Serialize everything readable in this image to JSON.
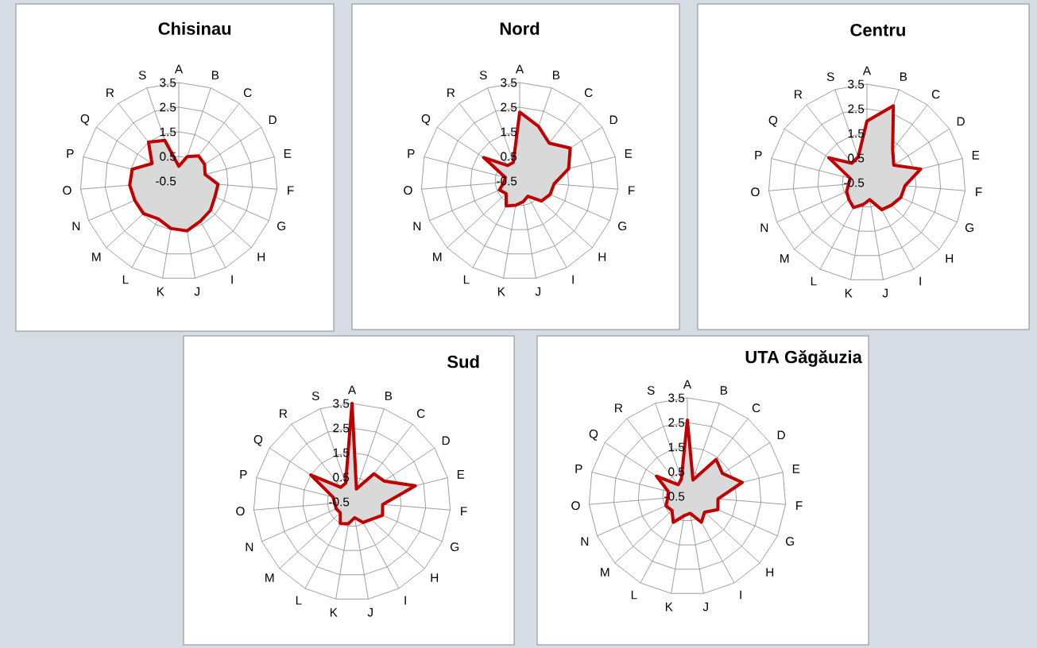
{
  "chart_data": [
    {
      "type": "radar",
      "title": "Chisinau",
      "categories": [
        "A",
        "B",
        "C",
        "D",
        "E",
        "F",
        "G",
        "H",
        "I",
        "J",
        "K",
        "L",
        "M",
        "N",
        "O",
        "P",
        "Q",
        "R",
        "S"
      ],
      "ylim": [
        -0.5,
        3.5
      ],
      "yticks": [
        -0.5,
        0.5,
        1.5,
        2.5,
        3.5
      ],
      "grid": true,
      "series": [
        {
          "color": "#c00000",
          "values": [
            0.1,
            0.55,
            0.8,
            0.75,
            0.6,
            1.1,
            1.1,
            1.25,
            1.35,
            1.55,
            1.45,
            1.25,
            1.45,
            1.45,
            1.5,
            1.45,
            0.8,
            1.5,
            1.25
          ]
        }
      ]
    },
    {
      "type": "radar",
      "title": "Nord",
      "categories": [
        "A",
        "B",
        "C",
        "D",
        "E",
        "F",
        "G",
        "H",
        "I",
        "J",
        "K",
        "L",
        "M",
        "N",
        "O",
        "P",
        "Q",
        "R",
        "S"
      ],
      "ylim": [
        -0.5,
        3.5
      ],
      "yticks": [
        -0.5,
        0.5,
        1.5,
        2.5,
        3.5
      ],
      "grid": true,
      "series": [
        {
          "color": "#c00000",
          "values": [
            2.3,
            1.85,
            1.45,
            1.95,
            1.55,
            0.9,
            0.85,
            0.7,
            0.2,
            0.35,
            0.5,
            0.65,
            0.25,
            0.4,
            0.15,
            0.1,
            1.25,
            0.3,
            0.3
          ]
        }
      ]
    },
    {
      "type": "radar",
      "title": "Centru",
      "categories": [
        "A",
        "B",
        "C",
        "D",
        "E",
        "F",
        "G",
        "H",
        "I",
        "J",
        "K",
        "L",
        "M",
        "N",
        "O",
        "P",
        "Q",
        "R",
        "S"
      ],
      "ylim": [
        -0.5,
        3.5
      ],
      "yticks": [
        -0.5,
        0.5,
        1.5,
        2.5,
        3.5
      ],
      "grid": true,
      "series": [
        {
          "color": "#c00000",
          "values": [
            2.0,
            2.8,
            1.2,
            0.8,
            1.75,
            1.05,
            1.0,
            0.85,
            0.75,
            0.2,
            0.4,
            0.65,
            0.5,
            0.4,
            0.25,
            0.2,
            1.35,
            0.5,
            0.6
          ]
        }
      ]
    },
    {
      "type": "radar",
      "title": "Sud",
      "categories": [
        "A",
        "B",
        "C",
        "D",
        "E",
        "F",
        "G",
        "H",
        "I",
        "J",
        "K",
        "L",
        "M",
        "N",
        "O",
        "P",
        "Q",
        "R",
        "S"
      ],
      "ylim": [
        -0.5,
        3.5
      ],
      "yticks": [
        -0.5,
        0.5,
        1.5,
        2.5,
        3.5
      ],
      "grid": true,
      "series": [
        {
          "color": "#c00000",
          "values": [
            3.5,
            0.05,
            0.95,
            1.05,
            2.15,
            0.75,
            0.85,
            0.55,
            0.45,
            0.15,
            0.4,
            0.5,
            0.15,
            0.2,
            0.2,
            0.3,
            1.5,
            0.25,
            0.3
          ]
        }
      ]
    },
    {
      "type": "radar",
      "title": "UTA Găgăuzia",
      "categories": [
        "A",
        "B",
        "C",
        "D",
        "E",
        "F",
        "G",
        "H",
        "I",
        "J",
        "K",
        "L",
        "M",
        "N",
        "O",
        "P",
        "Q",
        "R",
        "S"
      ],
      "ylim": [
        -0.5,
        3.5
      ],
      "yticks": [
        -0.5,
        0.5,
        1.5,
        2.5,
        3.5
      ],
      "grid": true,
      "series": [
        {
          "color": "#c00000",
          "values": [
            2.6,
            0.2,
            1.4,
            1.2,
            1.8,
            0.75,
            0.85,
            0.45,
            0.7,
            0.2,
            0.3,
            0.7,
            0.35,
            0.45,
            0.3,
            0.3,
            1.0,
            0.1,
            0.25
          ]
        }
      ]
    }
  ]
}
